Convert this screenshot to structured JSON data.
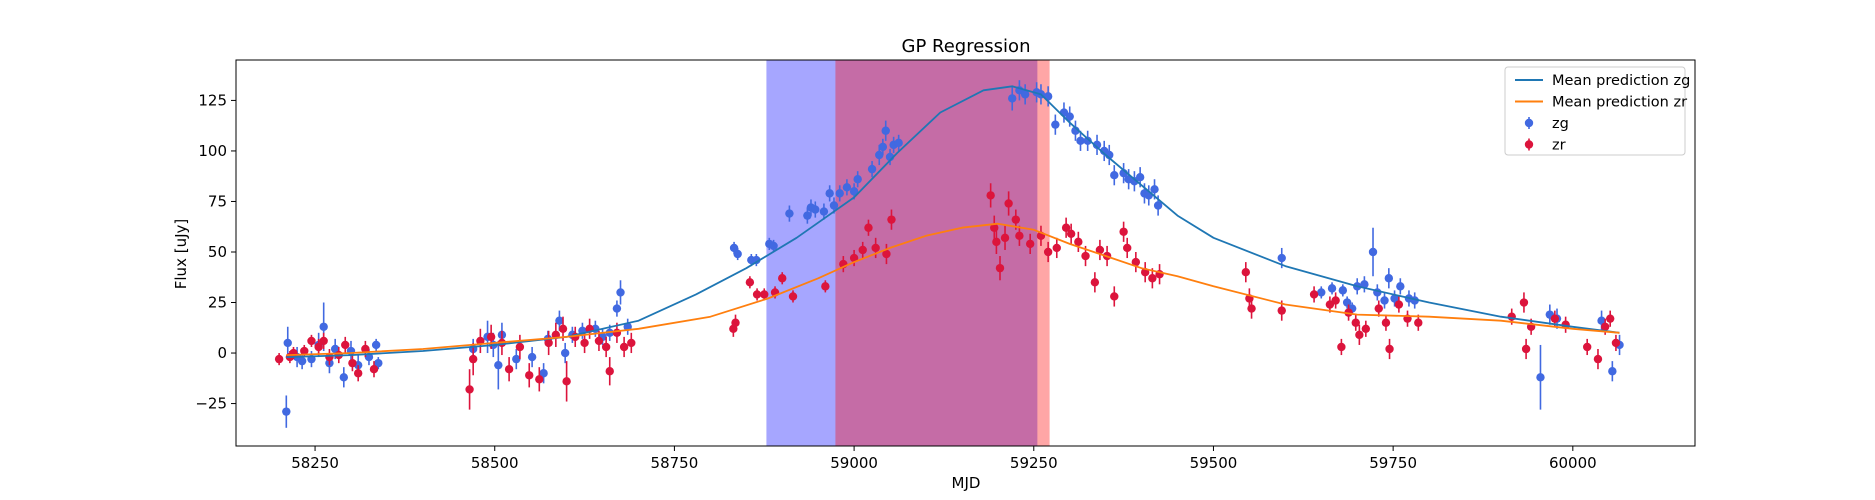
{
  "chart_data": {
    "type": "scatter",
    "title": "GP Regression",
    "xlabel": "MJD",
    "ylabel": "Flux [uJy]",
    "xlim": [
      58140,
      60170
    ],
    "ylim": [
      -46,
      145
    ],
    "xticks": [
      58250,
      58500,
      58750,
      59000,
      59250,
      59500,
      59750,
      60000
    ],
    "yticks": [
      -25,
      0,
      25,
      50,
      75,
      100,
      125
    ],
    "legend": {
      "location": "upper right",
      "entries": [
        "Mean prediction zg",
        "Mean prediction zr",
        "zg",
        "zr"
      ]
    },
    "colors": {
      "zg_points": "#4169e1",
      "zr_points": "#dc143c",
      "zg_line": "#1f77b4",
      "zr_line": "#ff7f0e",
      "span_blue": "#0000ff",
      "span_red": "#ff0000"
    },
    "shaded_regions": [
      {
        "x_start": 58878,
        "x_end": 59255,
        "color": "#0000ff",
        "alpha": 0.35
      },
      {
        "x_start": 58974,
        "x_end": 59272,
        "color": "#ff0000",
        "alpha": 0.35
      }
    ],
    "series": [
      {
        "name": "Mean prediction zg",
        "kind": "line",
        "x": [
          58210,
          58300,
          58400,
          58500,
          58600,
          58700,
          58780,
          58850,
          58920,
          59000,
          59060,
          59120,
          59180,
          59220,
          59260,
          59300,
          59350,
          59400,
          59450,
          59500,
          59600,
          59700,
          59800,
          59900,
          60000,
          60065
        ],
        "y": [
          -2,
          -1,
          1,
          4,
          8,
          16,
          29,
          42,
          57,
          77,
          99,
          119,
          130,
          132,
          128,
          114,
          98,
          83,
          68,
          57,
          43,
          33,
          25,
          18,
          13,
          10
        ]
      },
      {
        "name": "Mean prediction zr",
        "kind": "line",
        "x": [
          58210,
          58300,
          58400,
          58500,
          58600,
          58700,
          58800,
          58880,
          58950,
          59000,
          59050,
          59100,
          59150,
          59200,
          59250,
          59300,
          59350,
          59400,
          59450,
          59500,
          59600,
          59700,
          59800,
          59900,
          60000,
          60065
        ],
        "y": [
          -1,
          0,
          2,
          5,
          8,
          12,
          18,
          27,
          37,
          45,
          52,
          58,
          62,
          64,
          61,
          54,
          48,
          42,
          38,
          33,
          24,
          19,
          18,
          16,
          12,
          10
        ]
      },
      {
        "name": "zg",
        "kind": "errorbar",
        "points": [
          [
            58210,
            -29,
            8
          ],
          [
            58212,
            5,
            8
          ],
          [
            58225,
            -2,
            5
          ],
          [
            58232,
            -4,
            4
          ],
          [
            58245,
            -3,
            4
          ],
          [
            58255,
            4,
            6
          ],
          [
            58262,
            13,
            12
          ],
          [
            58270,
            -5,
            5
          ],
          [
            58278,
            2,
            5
          ],
          [
            58290,
            -12,
            5
          ],
          [
            58300,
            1,
            5
          ],
          [
            58310,
            -6,
            5
          ],
          [
            58325,
            -2,
            4
          ],
          [
            58335,
            4,
            3
          ],
          [
            58338,
            -5,
            3
          ],
          [
            58470,
            2,
            5
          ],
          [
            58490,
            8,
            8
          ],
          [
            58498,
            4,
            6
          ],
          [
            58505,
            -6,
            12
          ],
          [
            58510,
            9,
            6
          ],
          [
            58530,
            -3,
            5
          ],
          [
            58552,
            -2,
            5
          ],
          [
            58568,
            -10,
            5
          ],
          [
            58574,
            7,
            4
          ],
          [
            58590,
            16,
            5
          ],
          [
            58598,
            0,
            5
          ],
          [
            58608,
            9,
            4
          ],
          [
            58622,
            11,
            4
          ],
          [
            58640,
            12,
            4
          ],
          [
            58650,
            8,
            4
          ],
          [
            58660,
            10,
            4
          ],
          [
            58670,
            22,
            4
          ],
          [
            58675,
            30,
            6
          ],
          [
            58685,
            13,
            4
          ],
          [
            58833,
            52,
            3
          ],
          [
            58838,
            49,
            3
          ],
          [
            58857,
            46,
            3
          ],
          [
            58864,
            46,
            3
          ],
          [
            58882,
            54,
            3
          ],
          [
            58888,
            53,
            3
          ],
          [
            58910,
            69,
            4
          ],
          [
            58935,
            68,
            4
          ],
          [
            58940,
            72,
            4
          ],
          [
            58946,
            71,
            4
          ],
          [
            58958,
            70,
            4
          ],
          [
            58966,
            79,
            4
          ],
          [
            58972,
            73,
            4
          ],
          [
            58980,
            79,
            4
          ],
          [
            58990,
            82,
            4
          ],
          [
            59000,
            80,
            4
          ],
          [
            59005,
            86,
            4
          ],
          [
            59025,
            91,
            4
          ],
          [
            59035,
            98,
            5
          ],
          [
            59040,
            102,
            4
          ],
          [
            59044,
            110,
            5
          ],
          [
            59050,
            97,
            4
          ],
          [
            59055,
            103,
            4
          ],
          [
            59062,
            104,
            4
          ],
          [
            59220,
            126,
            6
          ],
          [
            59230,
            130,
            5
          ],
          [
            59238,
            128,
            5
          ],
          [
            59254,
            129,
            5
          ],
          [
            59260,
            128,
            5
          ],
          [
            59270,
            127,
            5
          ],
          [
            59280,
            113,
            5
          ],
          [
            59292,
            119,
            5
          ],
          [
            59300,
            117,
            5
          ],
          [
            59308,
            110,
            5
          ],
          [
            59315,
            105,
            5
          ],
          [
            59325,
            105,
            5
          ],
          [
            59338,
            103,
            5
          ],
          [
            59348,
            100,
            5
          ],
          [
            59355,
            98,
            5
          ],
          [
            59362,
            88,
            5
          ],
          [
            59375,
            89,
            5
          ],
          [
            59382,
            86,
            5
          ],
          [
            59390,
            85,
            5
          ],
          [
            59398,
            87,
            5
          ],
          [
            59404,
            79,
            5
          ],
          [
            59410,
            78,
            5
          ],
          [
            59418,
            81,
            5
          ],
          [
            59423,
            73,
            5
          ],
          [
            59595,
            47,
            5
          ],
          [
            59650,
            30,
            3
          ],
          [
            59665,
            32,
            3
          ],
          [
            59680,
            31,
            3
          ],
          [
            59686,
            25,
            3
          ],
          [
            59693,
            22,
            3
          ],
          [
            59700,
            33,
            4
          ],
          [
            59710,
            34,
            4
          ],
          [
            59722,
            50,
            12
          ],
          [
            59728,
            30,
            4
          ],
          [
            59738,
            26,
            4
          ],
          [
            59744,
            37,
            5
          ],
          [
            59752,
            27,
            4
          ],
          [
            59760,
            33,
            4
          ],
          [
            59772,
            27,
            4
          ],
          [
            59780,
            26,
            4
          ],
          [
            59955,
            -12,
            16
          ],
          [
            59968,
            19,
            5
          ],
          [
            59978,
            17,
            5
          ],
          [
            60040,
            16,
            5
          ],
          [
            60055,
            -9,
            5
          ],
          [
            60065,
            4,
            5
          ]
        ]
      },
      {
        "name": "zr",
        "kind": "errorbar",
        "points": [
          [
            58200,
            -3,
            3
          ],
          [
            58215,
            -2,
            3
          ],
          [
            58220,
            0,
            3
          ],
          [
            58235,
            1,
            3
          ],
          [
            58245,
            6,
            3
          ],
          [
            58255,
            3,
            4
          ],
          [
            58262,
            6,
            4
          ],
          [
            58270,
            -2,
            4
          ],
          [
            58283,
            -1,
            4
          ],
          [
            58292,
            4,
            4
          ],
          [
            58302,
            -5,
            4
          ],
          [
            58310,
            -10,
            4
          ],
          [
            58320,
            2,
            4
          ],
          [
            58332,
            -8,
            4
          ],
          [
            58465,
            -18,
            10
          ],
          [
            58470,
            -3,
            8
          ],
          [
            58480,
            6,
            6
          ],
          [
            58495,
            8,
            6
          ],
          [
            58510,
            5,
            6
          ],
          [
            58520,
            -8,
            6
          ],
          [
            58535,
            3,
            6
          ],
          [
            58548,
            -11,
            6
          ],
          [
            58562,
            -13,
            6
          ],
          [
            58575,
            5,
            6
          ],
          [
            58585,
            9,
            6
          ],
          [
            58595,
            12,
            6
          ],
          [
            58600,
            -14,
            10
          ],
          [
            58612,
            8,
            5
          ],
          [
            58625,
            5,
            5
          ],
          [
            58632,
            12,
            5
          ],
          [
            58645,
            6,
            5
          ],
          [
            58655,
            3,
            5
          ],
          [
            58660,
            -9,
            7
          ],
          [
            58670,
            10,
            5
          ],
          [
            58680,
            3,
            5
          ],
          [
            58690,
            5,
            5
          ],
          [
            58832,
            12,
            4
          ],
          [
            58835,
            15,
            4
          ],
          [
            58855,
            35,
            3
          ],
          [
            58865,
            29,
            3
          ],
          [
            58875,
            29,
            3
          ],
          [
            58890,
            30,
            3
          ],
          [
            58900,
            37,
            3
          ],
          [
            58915,
            28,
            3
          ],
          [
            58960,
            33,
            3
          ],
          [
            58985,
            44,
            4
          ],
          [
            59000,
            47,
            4
          ],
          [
            59012,
            51,
            4
          ],
          [
            59020,
            62,
            4
          ],
          [
            59030,
            52,
            5
          ],
          [
            59045,
            49,
            5
          ],
          [
            59052,
            66,
            5
          ],
          [
            59190,
            78,
            6
          ],
          [
            59195,
            62,
            6
          ],
          [
            59198,
            55,
            6
          ],
          [
            59203,
            42,
            6
          ],
          [
            59210,
            57,
            6
          ],
          [
            59215,
            74,
            6
          ],
          [
            59225,
            66,
            5
          ],
          [
            59230,
            58,
            5
          ],
          [
            59245,
            54,
            5
          ],
          [
            59260,
            58,
            5
          ],
          [
            59270,
            50,
            5
          ],
          [
            59282,
            52,
            5
          ],
          [
            59295,
            62,
            5
          ],
          [
            59302,
            59,
            5
          ],
          [
            59312,
            55,
            5
          ],
          [
            59322,
            48,
            5
          ],
          [
            59335,
            35,
            5
          ],
          [
            59342,
            51,
            5
          ],
          [
            59352,
            48,
            5
          ],
          [
            59362,
            28,
            5
          ],
          [
            59375,
            60,
            5
          ],
          [
            59380,
            52,
            5
          ],
          [
            59392,
            45,
            5
          ],
          [
            59405,
            40,
            5
          ],
          [
            59415,
            37,
            5
          ],
          [
            59425,
            39,
            5
          ],
          [
            59545,
            40,
            5
          ],
          [
            59550,
            27,
            5
          ],
          [
            59553,
            22,
            5
          ],
          [
            59595,
            21,
            5
          ],
          [
            59640,
            29,
            4
          ],
          [
            59662,
            24,
            4
          ],
          [
            59670,
            26,
            4
          ],
          [
            59678,
            3,
            4
          ],
          [
            59688,
            20,
            4
          ],
          [
            59698,
            15,
            4
          ],
          [
            59703,
            9,
            5
          ],
          [
            59712,
            12,
            4
          ],
          [
            59730,
            22,
            4
          ],
          [
            59740,
            15,
            4
          ],
          [
            59745,
            2,
            5
          ],
          [
            59758,
            24,
            4
          ],
          [
            59770,
            17,
            4
          ],
          [
            59785,
            15,
            4
          ],
          [
            59915,
            18,
            4
          ],
          [
            59932,
            25,
            5
          ],
          [
            59935,
            2,
            5
          ],
          [
            59942,
            13,
            4
          ],
          [
            59975,
            17,
            4
          ],
          [
            59990,
            14,
            4
          ],
          [
            60020,
            3,
            4
          ],
          [
            60035,
            -3,
            5
          ],
          [
            60045,
            13,
            4
          ],
          [
            60052,
            17,
            4
          ],
          [
            60060,
            5,
            4
          ]
        ]
      }
    ]
  }
}
